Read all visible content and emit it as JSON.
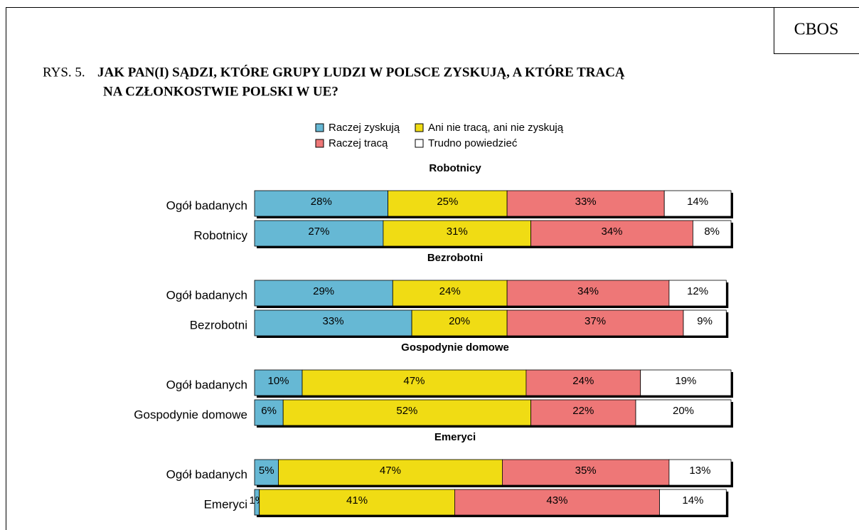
{
  "chart_data": {
    "type": "bar",
    "orientation": "horizontal",
    "stacked": true,
    "badge": "CBOS",
    "figure_label": "RYS. 5.",
    "title": [
      "JAK PAN(I) SĄDZI, KTÓRE GRUPY LUDZI W POLSCE ZYSKUJĄ, A KTÓRE TRACĄ",
      "NA  CZŁONKOSTWIE POLSKI W UE?"
    ],
    "groups": [
      "Robotnicy",
      "Bezrobotni",
      "Gospodynie domowe",
      "Emeryci"
    ],
    "categories": [
      "Ogół badanych",
      "Robotnicy",
      "Ogół badanych",
      "Bezrobotni",
      "Ogół badanych",
      "Gospodynie domowe",
      "Ogół badanych",
      "Emeryci"
    ],
    "xlim": [
      0,
      100
    ],
    "series": [
      {
        "name": "Raczej zyskują",
        "color": "#66b8d4",
        "values": [
          28,
          27,
          29,
          33,
          10,
          6,
          5,
          1
        ],
        "value_labels": [
          "28%",
          "27%",
          "29%",
          "33%",
          "10%",
          "6%",
          "5%",
          "1%"
        ]
      },
      {
        "name": "Ani nie tracą, ani nie zyskują",
        "color": "#f0dc14",
        "values": [
          25,
          31,
          24,
          20,
          47,
          52,
          47,
          41
        ],
        "value_labels": [
          "25%",
          "31%",
          "24%",
          "20%",
          "47%",
          "52%",
          "47%",
          "41%"
        ]
      },
      {
        "name": "Raczej tracą",
        "color": "#ee7777",
        "values": [
          33,
          34,
          34,
          37,
          24,
          22,
          35,
          43
        ],
        "value_labels": [
          "33%",
          "34%",
          "34%",
          "37%",
          "24%",
          "22%",
          "35%",
          "43%"
        ]
      },
      {
        "name": "Trudno powiedzieć",
        "color": "#ffffff",
        "values": [
          14,
          8,
          12,
          9,
          19,
          20,
          13,
          14
        ],
        "value_labels": [
          "14%",
          "8%",
          "12%",
          "9%",
          "19%",
          "20%",
          "13%",
          "14%"
        ]
      }
    ]
  }
}
